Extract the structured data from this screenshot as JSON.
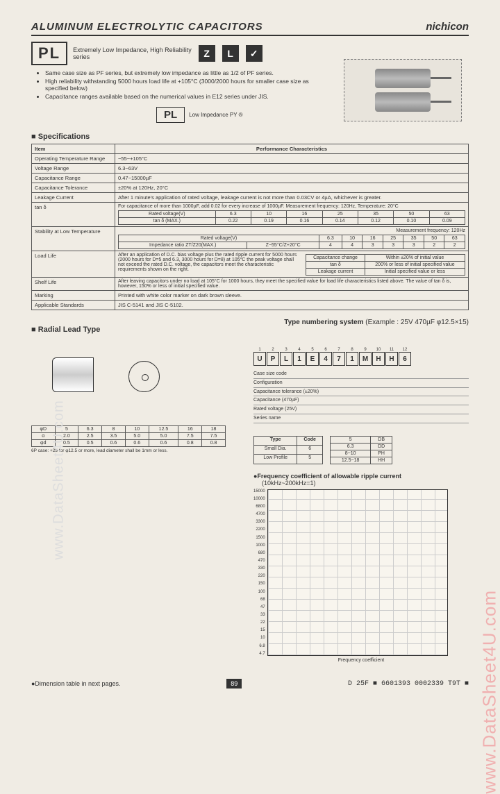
{
  "header": {
    "title": "ALUMINUM ELECTROLYTIC CAPACITORS",
    "brand": "nichicon"
  },
  "series": {
    "code": "PL",
    "tag": "Extremely Low Impedance, High Reliability",
    "suffix": "series",
    "icons": [
      "Z",
      "L",
      "✓"
    ]
  },
  "bullets": [
    "Same case size as PF series, but extremely low impedance as little as 1/2 of PF series.",
    "High reliability withstanding 5000 hours load life at +105°C (3000/2000 hours for smaller case size as specified below)",
    "Capacitance ranges available based on the numerical values in E12 series under JIS."
  ],
  "pl_label": {
    "box": "PL",
    "note": "Low Impedance PY ®"
  },
  "spec_title": "Specifications",
  "spec_headers": {
    "item": "Item",
    "perf": "Performance Characteristics"
  },
  "specs": {
    "temp": {
      "label": "Operating Temperature Range",
      "value": "−55~+105°C"
    },
    "volt": {
      "label": "Voltage Range",
      "value": "6.3~63V"
    },
    "cap": {
      "label": "Capacitance Range",
      "value": "0.47~15000µF"
    },
    "tol": {
      "label": "Capacitance Tolerance",
      "value": "±20% at 120Hz, 20°C"
    },
    "leak": {
      "label": "Leakage Current",
      "value": "After 1 minute's application of rated voltage, leakage current is not more than 0.03CV or 4µA, whichever is greater."
    },
    "tan": {
      "label": "tan δ",
      "note": "For capacitance of more than 1000µF, add 0.02 for every increase of 1000µF.   Measurement frequency: 120Hz, Temperature: 20°C",
      "row1_label": "Rated voltage(V)",
      "row2_label": "tan δ (MAX.)",
      "voltages": [
        "6.3",
        "10",
        "16",
        "25",
        "35",
        "50",
        "63"
      ],
      "values": [
        "0.22",
        "0.19",
        "0.16",
        "0.14",
        "0.12",
        "0.10",
        "0.09"
      ]
    },
    "stab": {
      "label": "Stability at Low Temperature",
      "note": "Measurement frequency: 120Hz",
      "row1_label": "Rated voltage(V)",
      "row2_label": "Impedance ratio ZT/Z20(MAX.)",
      "zt": "Z−55°C/Z+20°C",
      "voltages": [
        "6.3",
        "10",
        "16",
        "25",
        "35",
        "50",
        "63"
      ],
      "values": [
        "4",
        "4",
        "3",
        "3",
        "3",
        "2",
        "2"
      ]
    },
    "load": {
      "label": "Load Life",
      "value": "After an application of D.C. bias voltage plus the rated ripple current for 5000 hours (2000 hours for D=5 and 6.3, 3000 hours for D=8) at 105°C the peak voltage shall not exceed the rated D.C. voltage, the capacitors meet the characteristic requirements shown on the right.",
      "r1a": "Capacitance change",
      "r1b": "Within ±20% of initial value",
      "r2a": "tan δ",
      "r2b": "200% or less of initial specified value",
      "r3a": "Leakage current",
      "r3b": "Initial specified value or less"
    },
    "shelf": {
      "label": "Shelf Life",
      "value": "After leaving capacitors under no load at 105°C for 1000 hours, they meet the specified value for load life characteristics listed above. The value of tan δ is, however, 150% or less of initial specified value."
    },
    "mark": {
      "label": "Marking",
      "value": "Printed with white color marker on dark brown sleeve."
    },
    "std": {
      "label": "Applicable Standards",
      "value": "JIS C-5141 and JIS C-5102."
    }
  },
  "radial_title": "Radial Lead Type",
  "numbering": {
    "title": "Type numbering system",
    "example": "(Example : 25V 470µF φ12.5×15)",
    "positions": [
      "1",
      "2",
      "3",
      "4",
      "5",
      "6",
      "7",
      "8",
      "9",
      "10",
      "11",
      "12"
    ],
    "code": [
      "U",
      "P",
      "L",
      "1",
      "E",
      "4",
      "7",
      "1",
      "M",
      "H",
      "H",
      "6"
    ],
    "lines": [
      "Case size code",
      "Configuration",
      "Capacitance tolerance (±20%)",
      "Capacitance (470µF)",
      "Rated voltage (25V)",
      "Series name"
    ],
    "cfg_h1": "Type",
    "cfg_h2": "Code",
    "cfg_r": [
      [
        "Small Dia.",
        "6"
      ],
      [
        "Low Profile",
        "5"
      ]
    ],
    "d_r": [
      [
        "5",
        "DB"
      ],
      [
        "6.3",
        "DD"
      ],
      [
        "8~10",
        "PH"
      ],
      [
        "12.5~18",
        "HH"
      ]
    ]
  },
  "dims": {
    "rows_label": [
      "φD",
      "5",
      "6.3",
      "8",
      "10",
      "12.5",
      "16",
      "18"
    ],
    "r1": [
      "α",
      "2.0",
      "2.5",
      "3.5",
      "5.0",
      "5.0",
      "7.5",
      "7.5"
    ],
    "r2": [
      "φd",
      "0.5",
      "0.5",
      "0.6",
      "0.6",
      "0.6",
      "0.8",
      "0.8"
    ],
    "note": "6P case: +25 for φ12.5 or more, lead diameter shall be 1mm or less."
  },
  "freq": {
    "title": "●Frequency coefficient of allowable ripple current",
    "sub": "(10kHz~200kHz=1)",
    "xlabel": "Frequency coefficient",
    "yvals": [
      "15000",
      "10000",
      "6800",
      "4700",
      "3300",
      "2200",
      "1500",
      "1000",
      "680",
      "470",
      "330",
      "220",
      "150",
      "100",
      "68",
      "47",
      "33",
      "22",
      "15",
      "10",
      "6.8",
      "4.7"
    ]
  },
  "footer": {
    "note": "●Dimension table in next pages.",
    "page": "89",
    "code": "D   25F ■ 6601393 0002339 T9T ■"
  },
  "watermarks": {
    "left": "www.DataSheet4U.com",
    "right": "www.DataSheet4U.com"
  }
}
